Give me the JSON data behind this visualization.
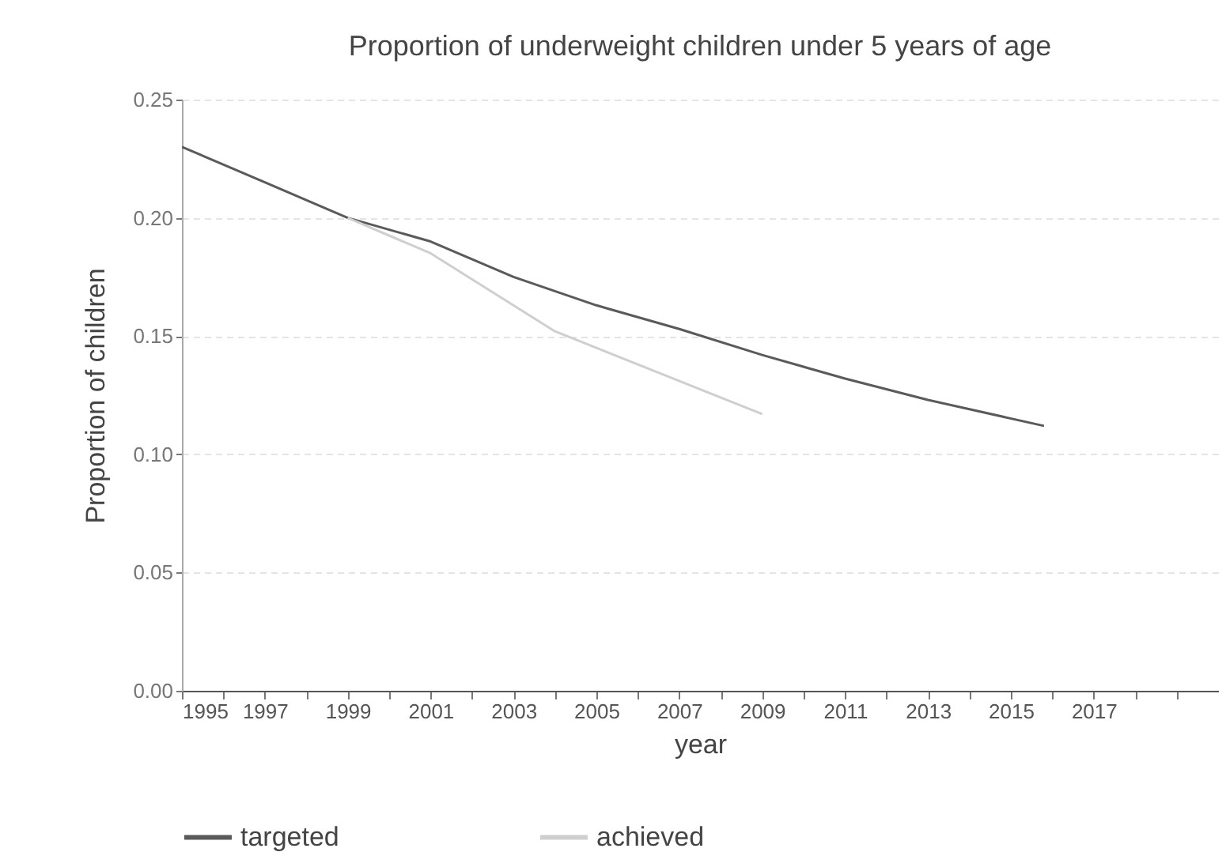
{
  "chart_data": {
    "type": "line",
    "title": "Proportion of underweight children under 5 years of age",
    "xlabel": "year",
    "ylabel": "Proportion of children",
    "series": [
      {
        "name": "targeted",
        "color": "#5a5a5a",
        "x": [
          1995,
          1997,
          1999,
          2001,
          2003,
          2005,
          2007,
          2009,
          2011,
          2013,
          2015.8
        ],
        "values": [
          0.23,
          0.215,
          0.2,
          0.19,
          0.175,
          0.163,
          0.153,
          0.142,
          0.132,
          0.123,
          0.112
        ]
      },
      {
        "name": "achieved",
        "color": "#cfcfcf",
        "x": [
          1999,
          2001,
          2004,
          2009
        ],
        "values": [
          0.2,
          0.185,
          0.152,
          0.117
        ]
      }
    ],
    "xlim": [
      1995,
      2020
    ],
    "xticks": [
      1995,
      {
        "value": 1996,
        "label": null
      },
      1997,
      {
        "value": 1998,
        "label": null
      },
      1999,
      {
        "value": 2000,
        "label": null
      },
      2001,
      {
        "value": 2002,
        "label": null
      },
      2003,
      {
        "value": 2004,
        "label": null
      },
      2005,
      {
        "value": 2006,
        "label": null
      },
      2007,
      {
        "value": 2008,
        "label": null
      },
      2009,
      {
        "value": 2010,
        "label": null
      },
      2011,
      {
        "value": 2012,
        "label": null
      },
      2013,
      {
        "value": 2014,
        "label": null
      },
      2015,
      {
        "value": 2016,
        "label": null
      },
      2017,
      {
        "value": 2018,
        "label": null
      },
      {
        "value": 2019,
        "label": null
      }
    ],
    "ylim": [
      0,
      0.25
    ],
    "yticks": [
      {
        "value": 0,
        "label": "0.00"
      },
      {
        "value": 0.05,
        "label": "0.05"
      },
      {
        "value": 0.1,
        "label": "0.10"
      },
      {
        "value": 0.15,
        "label": "0.15"
      },
      {
        "value": 0.2,
        "label": "0.20"
      },
      {
        "value": 0.25,
        "label": "0.25"
      }
    ],
    "grid": "y",
    "legend": "bottom",
    "line_style": "solid"
  }
}
